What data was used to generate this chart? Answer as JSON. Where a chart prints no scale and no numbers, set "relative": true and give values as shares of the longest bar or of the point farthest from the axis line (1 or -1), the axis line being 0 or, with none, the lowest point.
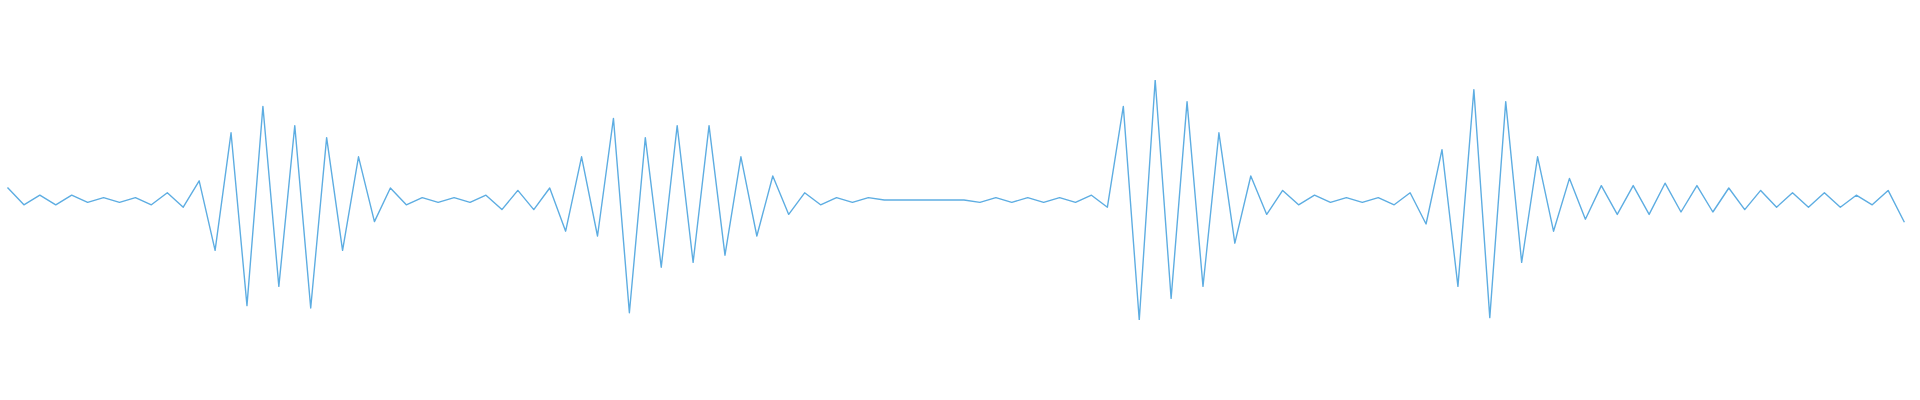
{
  "chart_data": {
    "type": "line",
    "relative": true,
    "grid": false,
    "legend": false,
    "categories": [
      null,
      null,
      null,
      null,
      null,
      null,
      null,
      null,
      null,
      null,
      null,
      null,
      null,
      null,
      null,
      null,
      null,
      null,
      null,
      null,
      null,
      null,
      null,
      null,
      null,
      null,
      null,
      null,
      null,
      null,
      null,
      null,
      null,
      null,
      null,
      null,
      null,
      null,
      null,
      null,
      null,
      null,
      null,
      null,
      null,
      null,
      null,
      null,
      null,
      null,
      null,
      null,
      null,
      null,
      null,
      null,
      null,
      null,
      null,
      null,
      null,
      null,
      null,
      null,
      null,
      null,
      null,
      null,
      null,
      null,
      null,
      null,
      null,
      null,
      null,
      null,
      null,
      null,
      null,
      null,
      null,
      null,
      null,
      null,
      null,
      null,
      null,
      null,
      null,
      null,
      null,
      null,
      null,
      null,
      null,
      null,
      null,
      null,
      null,
      null,
      null,
      null,
      null,
      null,
      null,
      null,
      null,
      null,
      null,
      null,
      null,
      null,
      null,
      null,
      null,
      null,
      null,
      null,
      null,
      null
    ],
    "series": [
      {
        "color": "#5dade2",
        "values": [
          0.55,
          0.48,
          0.52,
          0.48,
          0.52,
          0.49,
          0.51,
          0.49,
          0.51,
          0.48,
          0.53,
          0.47,
          0.58,
          0.29,
          0.78,
          0.06,
          0.89,
          0.14,
          0.81,
          0.05,
          0.76,
          0.29,
          0.68,
          0.41,
          0.55,
          0.48,
          0.51,
          0.49,
          0.51,
          0.49,
          0.52,
          0.46,
          0.54,
          0.46,
          0.55,
          0.37,
          0.68,
          0.35,
          0.84,
          0.03,
          0.76,
          0.22,
          0.81,
          0.24,
          0.81,
          0.27,
          0.68,
          0.35,
          0.6,
          0.44,
          0.53,
          0.48,
          0.51,
          0.49,
          0.51,
          0.5,
          0.5,
          0.5,
          0.5,
          0.5,
          0.5,
          0.49,
          0.51,
          0.49,
          0.51,
          0.49,
          0.51,
          0.49,
          0.52,
          0.47,
          0.89,
          0,
          1,
          0.09,
          0.91,
          0.14,
          0.78,
          0.32,
          0.6,
          0.44,
          0.54,
          0.48,
          0.52,
          0.49,
          0.51,
          0.49,
          0.51,
          0.48,
          0.53,
          0.4,
          0.71,
          0.14,
          0.96,
          0.01,
          0.91,
          0.24,
          0.68,
          0.37,
          0.59,
          0.42,
          0.56,
          0.44,
          0.56,
          0.44,
          0.57,
          0.45,
          0.56,
          0.45,
          0.55,
          0.46,
          0.54,
          0.47,
          0.53,
          0.47,
          0.53,
          0.47,
          0.52,
          0.48,
          0.54,
          0.41
        ]
      }
    ]
  }
}
